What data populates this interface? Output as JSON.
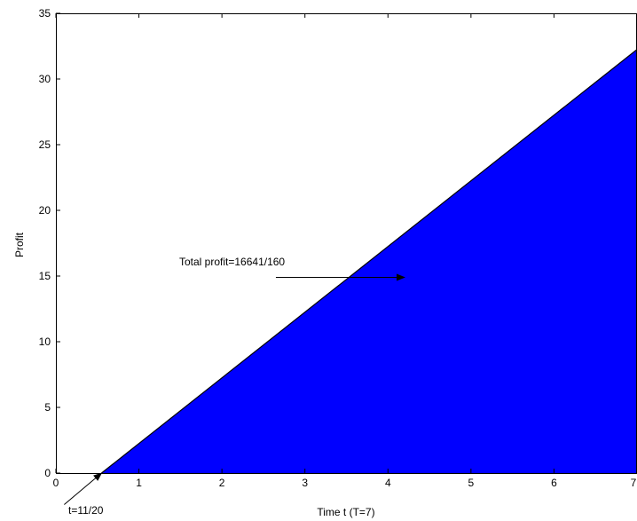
{
  "chart_data": {
    "type": "area",
    "title": "",
    "xlabel": "Time t (T=7)",
    "ylabel": "Profit",
    "xlim": [
      0,
      7
    ],
    "ylim": [
      0,
      35
    ],
    "x_ticks": [
      0,
      1,
      2,
      3,
      4,
      5,
      6,
      7
    ],
    "y_ticks": [
      0,
      5,
      10,
      15,
      20,
      25,
      30,
      35
    ],
    "grid": false,
    "series": [
      {
        "x": [
          0.55,
          7
        ],
        "y": [
          0,
          32.25
        ],
        "fill_color": "#0000ff",
        "line_color": "#000000"
      }
    ],
    "annotations": [
      {
        "text": "Total profit=16641/160",
        "arrow_from": [
          2.65,
          14.9
        ],
        "arrow_to": [
          4.2,
          14.9
        ]
      },
      {
        "text": "t=11/20",
        "arrow_from": [
          0.1,
          -2.4
        ],
        "arrow_to": [
          0.55,
          0
        ]
      }
    ]
  }
}
